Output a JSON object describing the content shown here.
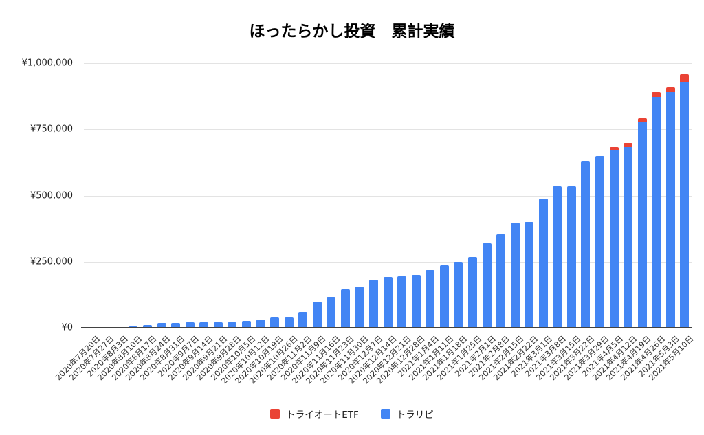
{
  "title": "ほったらかし投資　累計実績",
  "background": "#ffffff",
  "colors": {
    "series_etf": "#ea4335",
    "series_toraripi": "#4285f4",
    "gridline": "#e3e3e3",
    "axis_line": "#424242",
    "title_text": "#000000",
    "tick_text": "#333333"
  },
  "y_axis": {
    "tick_labels_top_to_bottom": [
      "¥1,000,000",
      "¥750,000",
      "¥500,000",
      "¥250,000",
      "¥0"
    ]
  },
  "legend": [
    {
      "label": "トライオートETF",
      "color": "#ea4335"
    },
    {
      "label": "トラリピ",
      "color": "#4285f4"
    }
  ],
  "chart_data": {
    "type": "bar",
    "stacked": true,
    "title": "ほったらかし投資　累計実績",
    "xlabel": "",
    "ylabel": "",
    "ylim": [
      0,
      1000000
    ],
    "y_ticks": [
      "¥0",
      "¥250,000",
      "¥500,000",
      "¥750,000",
      "¥1,000,000"
    ],
    "grid": true,
    "legend_position": "bottom",
    "categories": [
      "2020年7月20日",
      "2020年7月27日",
      "2020年8月3日",
      "2020年8月10日",
      "2020年8月17日",
      "2020年8月24日",
      "2020年8月31日",
      "2020年9月7日",
      "2020年9月14日",
      "2020年9月21日",
      "2020年9月28日",
      "2020年10月5日",
      "2020年10月12日",
      "2020年10月19日",
      "2020年10月26日",
      "2020年11月2日",
      "2020年11月9日",
      "2020年11月16日",
      "2020年11月23日",
      "2020年11月30日",
      "2020年12月7日",
      "2020年12月14日",
      "2020年12月21日",
      "2020年12月28日",
      "2021年1月4日",
      "2021年1月11日",
      "2021年1月18日",
      "2021年1月25日",
      "2021年2月1日",
      "2021年2月8日",
      "2021年2月15日",
      "2021年2月22日",
      "2021年3月1日",
      "2021年3月8日",
      "2021年3月15日",
      "2021年3月22日",
      "2021年3月29日",
      "2021年4月5日",
      "2021年4月12日",
      "2021年4月19日",
      "2021年4月26日",
      "2021年5月3日",
      "2021年5月10日"
    ],
    "series": [
      {
        "name": "トラリピ",
        "color": "#4285f4",
        "stack_order": "bottom",
        "values": [
          0,
          1000,
          2500,
          5000,
          10000,
          18000,
          19000,
          20000,
          20500,
          21000,
          21500,
          27000,
          31000,
          38000,
          40000,
          60000,
          98000,
          118000,
          146000,
          157000,
          181000,
          192000,
          196000,
          200000,
          218000,
          237000,
          250000,
          268000,
          320000,
          353000,
          398000,
          400000,
          488000,
          535000,
          535000,
          628000,
          650000,
          674000,
          683000,
          776000,
          874000,
          890000,
          928000
        ]
      },
      {
        "name": "トライオートETF",
        "color": "#ea4335",
        "stack_order": "top",
        "values": [
          0,
          0,
          0,
          0,
          0,
          0,
          0,
          0,
          0,
          0,
          0,
          0,
          0,
          0,
          0,
          0,
          0,
          0,
          0,
          0,
          0,
          0,
          0,
          0,
          0,
          0,
          0,
          0,
          0,
          0,
          0,
          0,
          0,
          0,
          0,
          0,
          0,
          10000,
          15000,
          17000,
          18000,
          18000,
          30000
        ]
      }
    ]
  }
}
